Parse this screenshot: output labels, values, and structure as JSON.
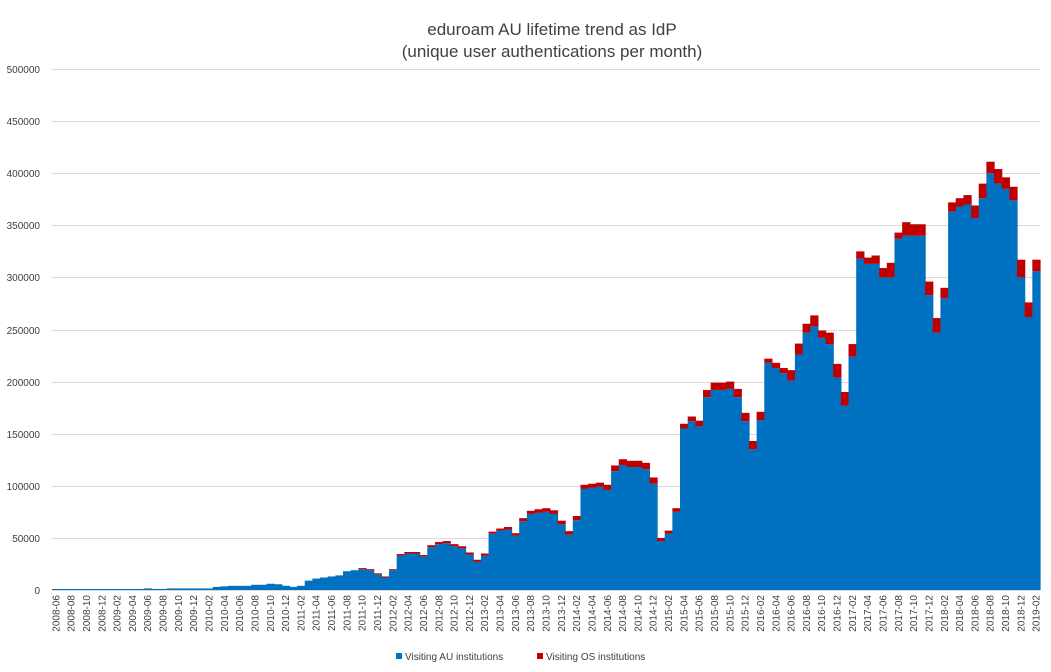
{
  "chart_data": {
    "type": "bar",
    "stacked": true,
    "title": "eduroam AU lifetime trend as IdP",
    "subtitle": "(unique user authentications per month)",
    "xlabel": "",
    "ylabel": "",
    "ylim": [
      0,
      500000
    ],
    "yticks": [
      0,
      50000,
      100000,
      150000,
      200000,
      250000,
      300000,
      350000,
      400000,
      450000,
      500000
    ],
    "grid": true,
    "legend_position": "bottom",
    "categories": [
      "2008-06",
      "2008-07",
      "2008-08",
      "2008-09",
      "2008-10",
      "2008-11",
      "2008-12",
      "2009-01",
      "2009-02",
      "2009-03",
      "2009-04",
      "2009-05",
      "2009-06",
      "2009-07",
      "2009-08",
      "2009-09",
      "2009-10",
      "2009-11",
      "2009-12",
      "2010-01",
      "2010-02",
      "2010-03",
      "2010-04",
      "2010-05",
      "2010-06",
      "2010-07",
      "2010-08",
      "2010-09",
      "2010-10",
      "2010-11",
      "2010-12",
      "2011-01",
      "2011-02",
      "2011-03",
      "2011-04",
      "2011-05",
      "2011-06",
      "2011-07",
      "2011-08",
      "2011-09",
      "2011-10",
      "2011-11",
      "2011-12",
      "2012-01",
      "2012-02",
      "2012-03",
      "2012-04",
      "2012-05",
      "2012-06",
      "2012-07",
      "2012-08",
      "2012-09",
      "2012-10",
      "2012-11",
      "2012-12",
      "2013-01",
      "2013-02",
      "2013-03",
      "2013-04",
      "2013-05",
      "2013-06",
      "2013-07",
      "2013-08",
      "2013-09",
      "2013-10",
      "2013-11",
      "2013-12",
      "2014-01",
      "2014-02",
      "2014-03",
      "2014-04",
      "2014-05",
      "2014-06",
      "2014-07",
      "2014-08",
      "2014-09",
      "2014-10",
      "2014-11",
      "2014-12",
      "2015-01",
      "2015-02",
      "2015-03",
      "2015-04",
      "2015-05",
      "2015-06",
      "2015-07",
      "2015-08",
      "2015-09",
      "2015-10",
      "2015-11",
      "2015-12",
      "2016-01",
      "2016-02",
      "2016-03",
      "2016-04",
      "2016-05",
      "2016-06",
      "2016-07",
      "2016-08",
      "2016-09",
      "2016-10",
      "2016-11",
      "2016-12",
      "2017-01",
      "2017-02",
      "2017-03",
      "2017-04",
      "2017-05",
      "2017-06",
      "2017-07",
      "2017-08",
      "2017-09",
      "2017-10",
      "2017-11",
      "2017-12",
      "2018-01",
      "2018-02",
      "2018-03",
      "2018-04",
      "2018-05",
      "2018-06",
      "2018-07",
      "2018-08",
      "2018-09",
      "2018-10",
      "2018-11",
      "2018-12",
      "2019-01",
      "2019-02"
    ],
    "xtick_labels": [
      "2008-06",
      "2008-08",
      "2008-10",
      "2008-12",
      "2009-02",
      "2009-04",
      "2009-06",
      "2009-08",
      "2009-10",
      "2009-12",
      "2010-02",
      "2010-04",
      "2010-06",
      "2010-08",
      "2010-10",
      "2010-12",
      "2011-02",
      "2011-04",
      "2011-06",
      "2011-08",
      "2011-10",
      "2011-12",
      "2012-02",
      "2012-04",
      "2012-06",
      "2012-08",
      "2012-10",
      "2012-12",
      "2013-02",
      "2013-04",
      "2013-06",
      "2013-08",
      "2013-10",
      "2013-12",
      "2014-02",
      "2014-04",
      "2014-06",
      "2014-08",
      "2014-10",
      "2014-12",
      "2015-02",
      "2015-04",
      "2015-06",
      "2015-08",
      "2015-10",
      "2015-12",
      "2016-02",
      "2016-04",
      "2016-06",
      "2016-08",
      "2016-10",
      "2016-12",
      "2017-02",
      "2017-04",
      "2017-06",
      "2017-08",
      "2017-10",
      "2017-12",
      "2018-02",
      "2018-04",
      "2018-06",
      "2018-08",
      "2018-10",
      "2018-12",
      "2019-02"
    ],
    "series": [
      {
        "name": "Visiting AU institutions",
        "color": "#0070c0",
        "values": [
          1000,
          1000,
          1000,
          1000,
          1000,
          1000,
          1000,
          1000,
          1000,
          1000,
          1000,
          1000,
          1500,
          1000,
          1000,
          1500,
          1500,
          1500,
          1500,
          1500,
          1500,
          3000,
          3500,
          4000,
          4000,
          4000,
          5000,
          5000,
          6000,
          5500,
          4000,
          3000,
          4000,
          9000,
          11000,
          12000,
          13000,
          14000,
          18000,
          19000,
          20000,
          19000,
          15000,
          12000,
          19000,
          33000,
          35000,
          35000,
          32000,
          41000,
          44000,
          45000,
          42000,
          40000,
          34000,
          27000,
          33000,
          54000,
          57000,
          58000,
          52000,
          66000,
          73000,
          74000,
          75000,
          73000,
          63000,
          53000,
          67000,
          97000,
          98000,
          99000,
          96000,
          114000,
          120000,
          118000,
          118000,
          116000,
          102000,
          47000,
          54000,
          75000,
          155000,
          162000,
          157000,
          185000,
          192000,
          192000,
          193000,
          185000,
          162000,
          135000,
          163000,
          218000,
          213000,
          208000,
          201000,
          226000,
          247000,
          253000,
          242000,
          236000,
          204000,
          177000,
          224000,
          318000,
          313000,
          313000,
          300000,
          300000,
          337000,
          340000,
          340000,
          340000,
          283000,
          247000,
          280000,
          363000,
          368000,
          370000,
          357000,
          376000,
          400000,
          390000,
          385000,
          374000,
          300000,
          262000,
          306000
        ]
      },
      {
        "name": "Visiting OS institutions",
        "color": "#c00000",
        "values": [
          0,
          0,
          0,
          0,
          0,
          0,
          0,
          0,
          0,
          0,
          0,
          0,
          0,
          0,
          0,
          0,
          0,
          0,
          0,
          0,
          0,
          0,
          0,
          0,
          0,
          0,
          0,
          0,
          0,
          0,
          0,
          0,
          0,
          0,
          0,
          0,
          0,
          0,
          0,
          0,
          1000,
          1000,
          1000,
          1000,
          1000,
          1500,
          1500,
          1500,
          1500,
          2000,
          2000,
          2000,
          2000,
          2000,
          2000,
          2000,
          2000,
          2000,
          2000,
          2500,
          2500,
          3000,
          3000,
          3500,
          3500,
          3500,
          3500,
          3500,
          4000,
          4000,
          4000,
          4000,
          5000,
          5500,
          5500,
          6000,
          6000,
          6000,
          6000,
          3000,
          3000,
          3500,
          4500,
          4500,
          5500,
          7000,
          7000,
          7000,
          7000,
          8000,
          8000,
          8000,
          8000,
          4000,
          5000,
          5000,
          10000,
          10500,
          8500,
          10500,
          7000,
          11000,
          13000,
          13000,
          12000,
          7000,
          6000,
          8000,
          9000,
          14000,
          6000,
          13000,
          11000,
          11000,
          13000,
          14000,
          10000,
          9000,
          8000,
          9000,
          12000,
          14000,
          11000,
          14000,
          11000,
          13000,
          17000,
          14000,
          11000
        ]
      }
    ]
  }
}
